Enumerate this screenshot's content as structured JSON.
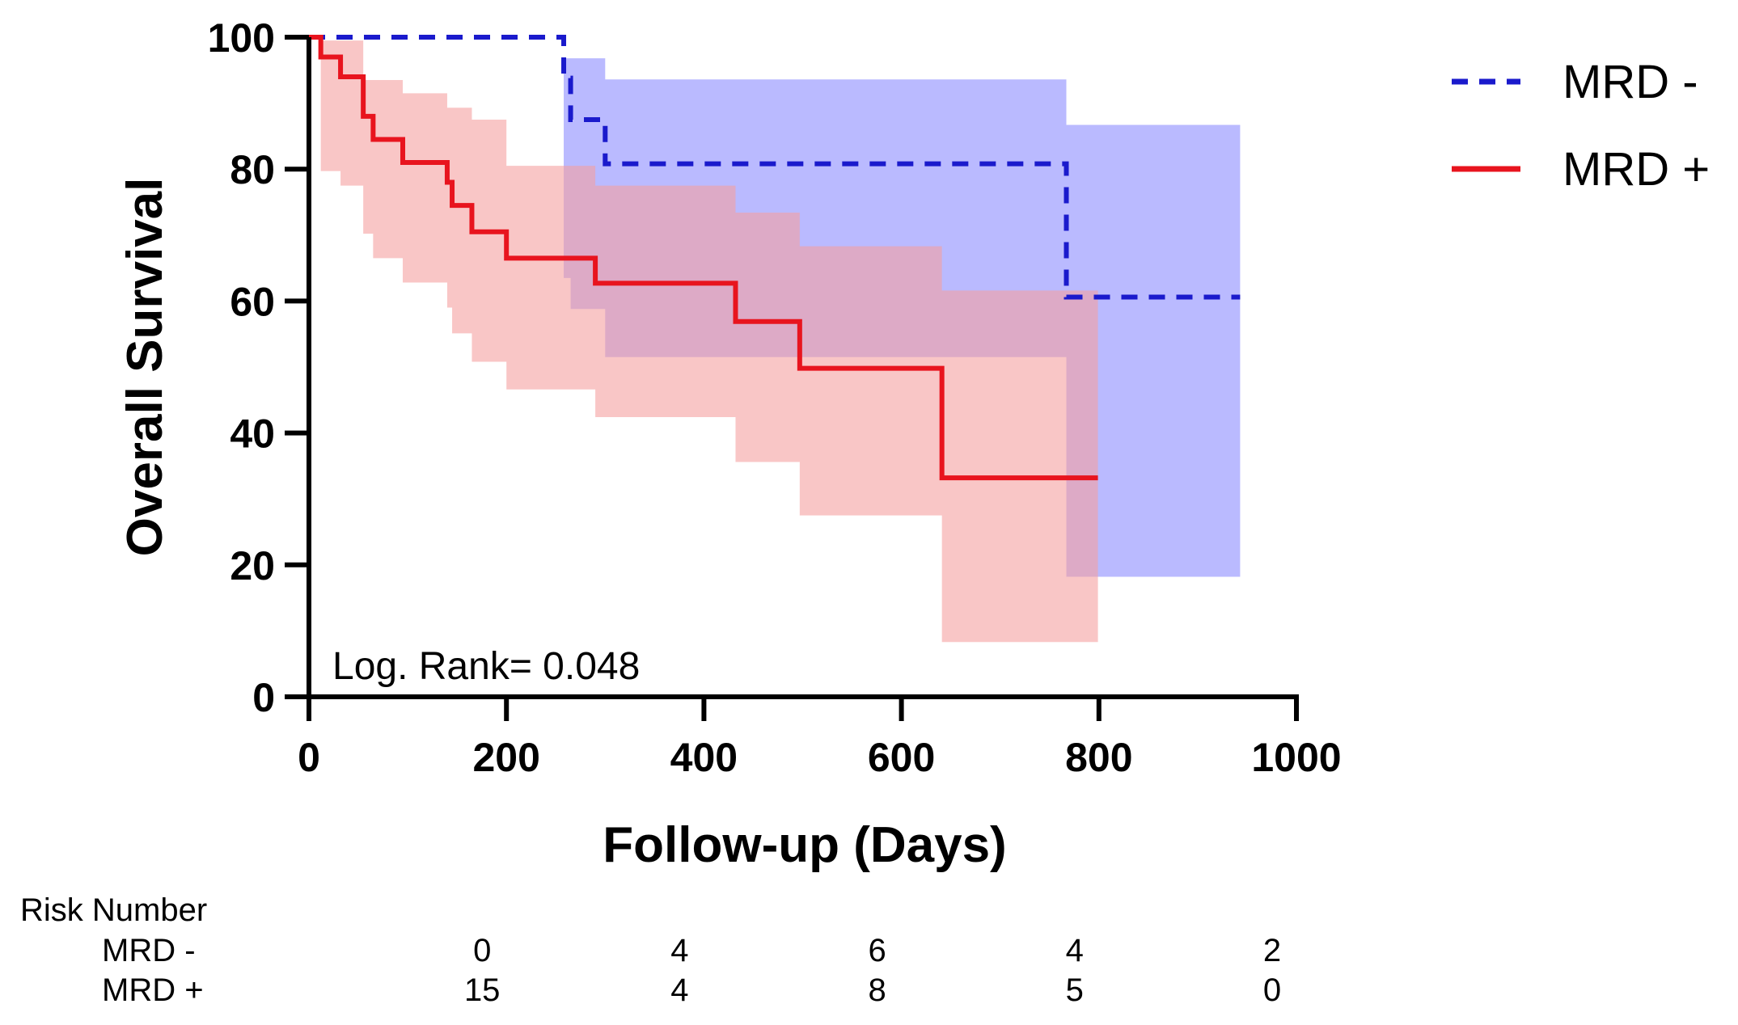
{
  "chart_data": {
    "type": "line",
    "subtype": "kaplan-meier-step",
    "xlabel": "Follow-up (Days)",
    "ylabel": "Overall Survival",
    "xlim": [
      0,
      1000
    ],
    "ylim": [
      0,
      100
    ],
    "xticks": [
      0,
      200,
      400,
      600,
      800,
      1000
    ],
    "yticks": [
      0,
      20,
      40,
      60,
      80,
      100
    ],
    "annotation": "Log. Rank= 0.048",
    "legend": {
      "position": "top-right"
    },
    "series": [
      {
        "name": "MRD -",
        "color": "#1a1acc",
        "style": "dashed",
        "band_color": "#8c8cff",
        "steps": [
          {
            "x": 0,
            "y": 100
          },
          {
            "x": 258,
            "y": 100
          },
          {
            "x": 258,
            "y": 93.8
          },
          {
            "x": 265,
            "y": 93.8
          },
          {
            "x": 265,
            "y": 87.5
          },
          {
            "x": 300,
            "y": 87.5
          },
          {
            "x": 300,
            "y": 80.8
          },
          {
            "x": 767,
            "y": 80.8
          },
          {
            "x": 767,
            "y": 60.6
          },
          {
            "x": 943,
            "y": 60.6
          }
        ],
        "ci_upper": [
          {
            "x": 258,
            "y": 96.8
          },
          {
            "x": 300,
            "y": 96.8
          },
          {
            "x": 300,
            "y": 93.6
          },
          {
            "x": 767,
            "y": 93.6
          },
          {
            "x": 767,
            "y": 86.7
          },
          {
            "x": 943,
            "y": 86.7
          }
        ],
        "ci_lower": [
          {
            "x": 258,
            "y": 63.5
          },
          {
            "x": 265,
            "y": 63.5
          },
          {
            "x": 265,
            "y": 58.8
          },
          {
            "x": 300,
            "y": 58.8
          },
          {
            "x": 300,
            "y": 51.5
          },
          {
            "x": 767,
            "y": 51.5
          },
          {
            "x": 767,
            "y": 18.2
          },
          {
            "x": 943,
            "y": 18.2
          }
        ]
      },
      {
        "name": "MRD +",
        "color": "#e8141e",
        "style": "solid",
        "band_color": "#f5a0a0",
        "steps": [
          {
            "x": 0,
            "y": 100
          },
          {
            "x": 12,
            "y": 100
          },
          {
            "x": 12,
            "y": 97
          },
          {
            "x": 32,
            "y": 97
          },
          {
            "x": 32,
            "y": 94
          },
          {
            "x": 55,
            "y": 94
          },
          {
            "x": 55,
            "y": 88
          },
          {
            "x": 65,
            "y": 88
          },
          {
            "x": 65,
            "y": 84.5
          },
          {
            "x": 95,
            "y": 84.5
          },
          {
            "x": 95,
            "y": 81
          },
          {
            "x": 140,
            "y": 81
          },
          {
            "x": 140,
            "y": 78
          },
          {
            "x": 145,
            "y": 78
          },
          {
            "x": 145,
            "y": 74.5
          },
          {
            "x": 165,
            "y": 74.5
          },
          {
            "x": 165,
            "y": 70.5
          },
          {
            "x": 200,
            "y": 70.5
          },
          {
            "x": 200,
            "y": 66.5
          },
          {
            "x": 290,
            "y": 66.5
          },
          {
            "x": 290,
            "y": 62.7
          },
          {
            "x": 432,
            "y": 62.7
          },
          {
            "x": 432,
            "y": 56.9
          },
          {
            "x": 497,
            "y": 56.9
          },
          {
            "x": 497,
            "y": 49.8
          },
          {
            "x": 641,
            "y": 49.8
          },
          {
            "x": 641,
            "y": 33.2
          },
          {
            "x": 799,
            "y": 33.2
          }
        ],
        "ci_upper": [
          {
            "x": 12,
            "y": 99.5
          },
          {
            "x": 55,
            "y": 99.5
          },
          {
            "x": 55,
            "y": 93.5
          },
          {
            "x": 95,
            "y": 93.5
          },
          {
            "x": 95,
            "y": 91.5
          },
          {
            "x": 140,
            "y": 91.5
          },
          {
            "x": 140,
            "y": 89.3
          },
          {
            "x": 165,
            "y": 89.3
          },
          {
            "x": 165,
            "y": 87.5
          },
          {
            "x": 200,
            "y": 87.5
          },
          {
            "x": 200,
            "y": 80.5
          },
          {
            "x": 290,
            "y": 80.5
          },
          {
            "x": 290,
            "y": 77.5
          },
          {
            "x": 432,
            "y": 77.5
          },
          {
            "x": 432,
            "y": 73.4
          },
          {
            "x": 497,
            "y": 73.4
          },
          {
            "x": 497,
            "y": 68.3
          },
          {
            "x": 641,
            "y": 68.3
          },
          {
            "x": 641,
            "y": 61.6
          },
          {
            "x": 799,
            "y": 61.6
          }
        ],
        "ci_lower": [
          {
            "x": 12,
            "y": 79.7
          },
          {
            "x": 32,
            "y": 79.7
          },
          {
            "x": 32,
            "y": 77.5
          },
          {
            "x": 55,
            "y": 77.5
          },
          {
            "x": 55,
            "y": 70.2
          },
          {
            "x": 65,
            "y": 70.2
          },
          {
            "x": 65,
            "y": 66.5
          },
          {
            "x": 95,
            "y": 66.5
          },
          {
            "x": 95,
            "y": 62.8
          },
          {
            "x": 140,
            "y": 62.8
          },
          {
            "x": 140,
            "y": 59
          },
          {
            "x": 145,
            "y": 59
          },
          {
            "x": 145,
            "y": 55.1
          },
          {
            "x": 165,
            "y": 55.1
          },
          {
            "x": 165,
            "y": 50.8
          },
          {
            "x": 200,
            "y": 50.8
          },
          {
            "x": 200,
            "y": 46.6
          },
          {
            "x": 290,
            "y": 46.6
          },
          {
            "x": 290,
            "y": 42.4
          },
          {
            "x": 432,
            "y": 42.4
          },
          {
            "x": 432,
            "y": 35.6
          },
          {
            "x": 497,
            "y": 35.6
          },
          {
            "x": 497,
            "y": 27.5
          },
          {
            "x": 641,
            "y": 27.5
          },
          {
            "x": 641,
            "y": 8.3
          },
          {
            "x": 799,
            "y": 8.3
          }
        ]
      }
    ],
    "risk_table": {
      "title": "Risk Number",
      "rows": [
        {
          "label": "MRD -",
          "values": [
            "0",
            "4",
            "6",
            "4",
            "2"
          ]
        },
        {
          "label": "MRD +",
          "values": [
            "15",
            "4",
            "8",
            "5",
            "0"
          ]
        }
      ]
    }
  }
}
